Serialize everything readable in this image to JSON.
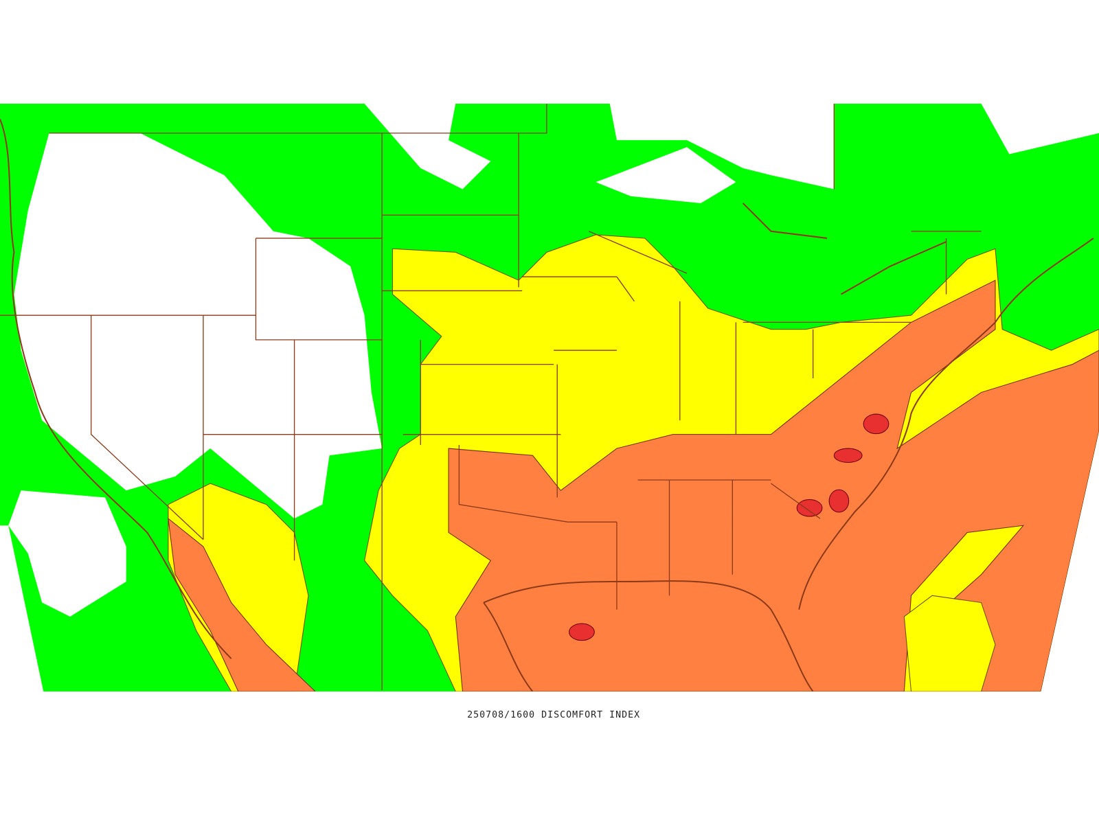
{
  "caption": "250708/1600 DISCOMFORT INDEX"
}
